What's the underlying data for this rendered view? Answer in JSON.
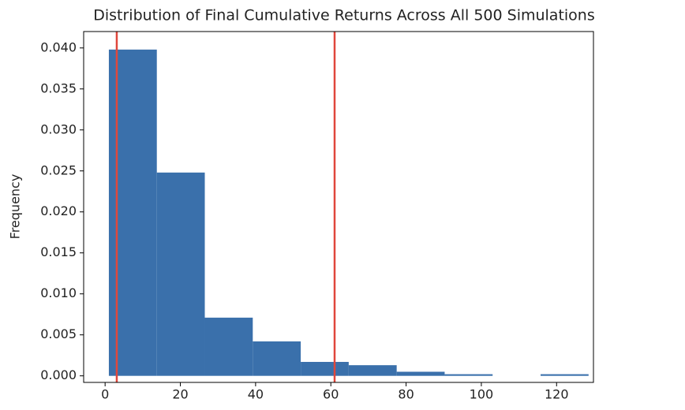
{
  "chart_data": {
    "type": "histogram",
    "title": "Distribution of Final Cumulative Returns Across All 500 Simulations",
    "ylabel": "Frequency",
    "bins": [
      1.0,
      13.75,
      26.5,
      39.25,
      52.0,
      64.75,
      77.5,
      90.25,
      103.0,
      115.75,
      128.5
    ],
    "values": [
      0.0398,
      0.0248,
      0.0071,
      0.0042,
      0.0017,
      0.0013,
      0.0005,
      0.0002,
      0,
      0.0002
    ],
    "color": "#3a70ab",
    "vlines": [
      3.1,
      61.0
    ],
    "vline_color": "#e0473c",
    "xlim": [
      -5.7,
      129.8
    ],
    "xticks": [
      0,
      20,
      40,
      60,
      80,
      100,
      120
    ],
    "ylim": [
      -0.0008,
      0.042
    ],
    "yticks": [
      {
        "value": 0,
        "label": "0.000"
      },
      {
        "value": 0.005,
        "label": "0.005"
      },
      {
        "value": 0.01,
        "label": "0.010"
      },
      {
        "value": 0.015,
        "label": "0.015"
      },
      {
        "value": 0.02,
        "label": "0.020"
      },
      {
        "value": 0.025,
        "label": "0.025"
      },
      {
        "value": 0.03,
        "label": "0.030"
      },
      {
        "value": 0.035,
        "label": "0.035"
      },
      {
        "value": 0.04,
        "label": "0.040"
      }
    ]
  }
}
